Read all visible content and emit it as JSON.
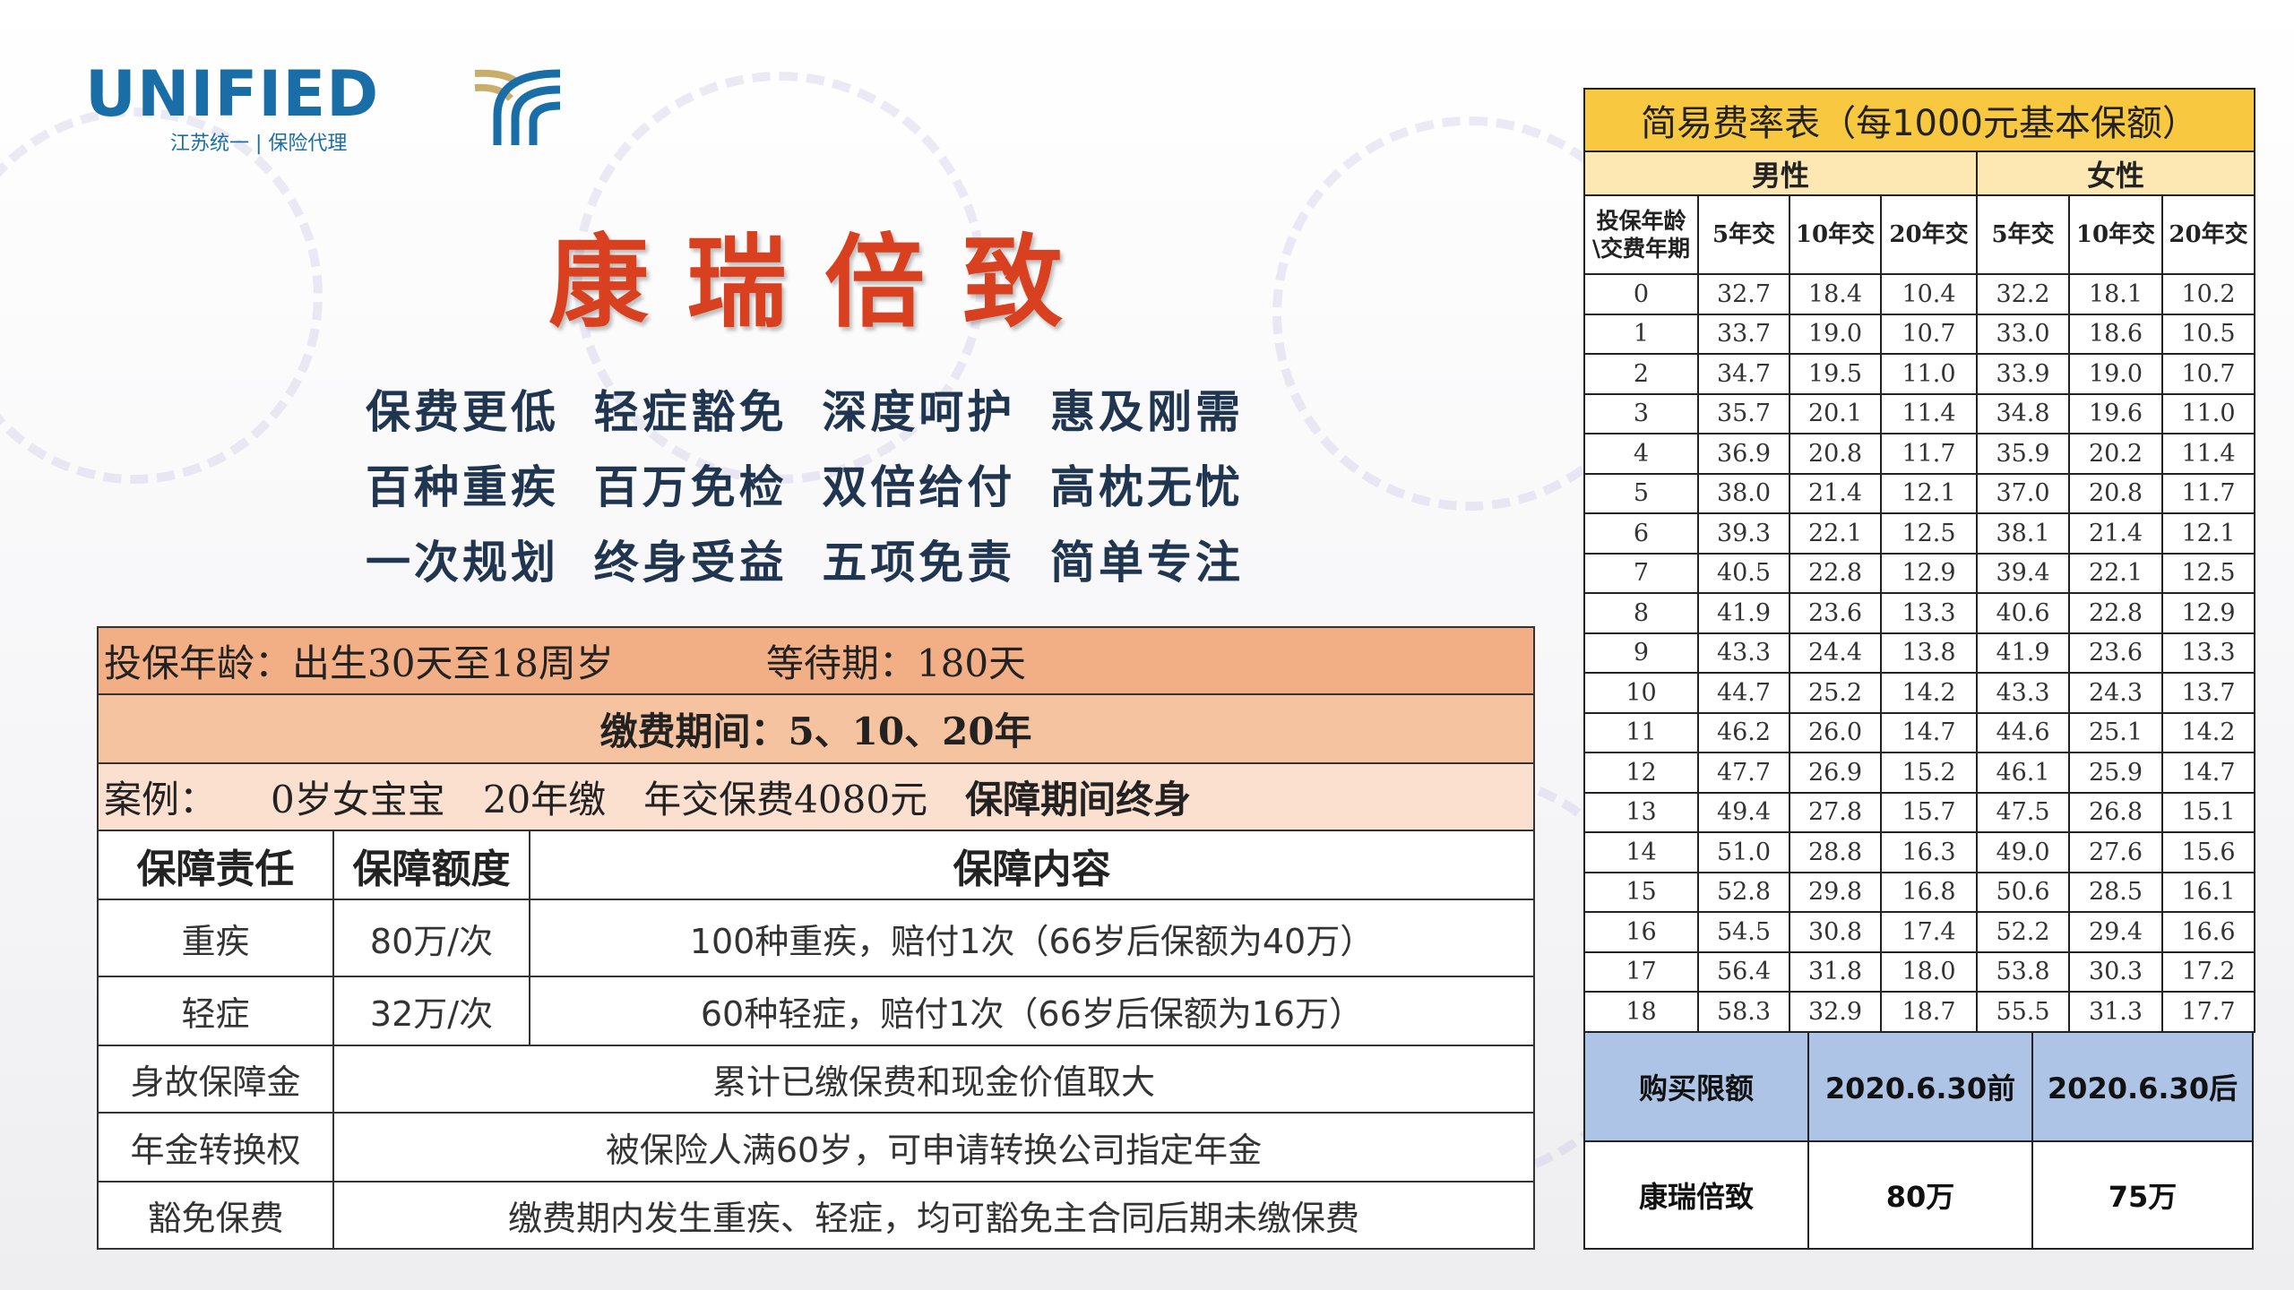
{
  "logo": {
    "name": "UNIFIED",
    "subtitle": "江苏统一 | 保险代理"
  },
  "title": "康瑞倍致",
  "slogans": [
    [
      "保费更低",
      "轻症豁免",
      "深度呵护",
      "惠及刚需"
    ],
    [
      "百种重疾",
      "百万免检",
      "双倍给付",
      "高枕无忧"
    ],
    [
      "一次规划",
      "终身受益",
      "五项免责",
      "简单专注"
    ]
  ],
  "info": {
    "age": "投保年龄：出生30天至18周岁",
    "waiting": "等待期：180天",
    "payment": "缴费期间：5、10、20年",
    "case_label": "案例：",
    "case_detail": "0岁女宝宝　20年缴　年交保费4080元",
    "case_term": "保障期间终身",
    "headers": [
      "保障责任",
      "保障额度",
      "保障内容"
    ],
    "rows": [
      {
        "item": "重疾",
        "amount": "80万/次",
        "content": "100种重疾，赔付1次（66岁后保额为40万）"
      },
      {
        "item": "轻症",
        "amount": "32万/次",
        "content": "60种轻症，赔付1次（66岁后保额为16万）"
      },
      {
        "item": "身故保障金",
        "content": "累计已缴保费和现金价值取大"
      },
      {
        "item": "年金转换权",
        "content": "被保险人满60岁，可申请转换公司指定年金"
      },
      {
        "item": "豁免保费",
        "content": "缴费期内发生重疾、轻症，均可豁免主合同后期未缴保费"
      }
    ]
  },
  "rate_table": {
    "title": "简易费率表（每1000元基本保额）",
    "genders": [
      "男性",
      "女性"
    ],
    "corner": "投保年龄\\交费年期",
    "columns": [
      "5年交",
      "10年交",
      "20年交",
      "5年交",
      "10年交",
      "20年交"
    ],
    "rows": [
      [
        "0",
        "32.7",
        "18.4",
        "10.4",
        "32.2",
        "18.1",
        "10.2"
      ],
      [
        "1",
        "33.7",
        "19.0",
        "10.7",
        "33.0",
        "18.6",
        "10.5"
      ],
      [
        "2",
        "34.7",
        "19.5",
        "11.0",
        "33.9",
        "19.0",
        "10.7"
      ],
      [
        "3",
        "35.7",
        "20.1",
        "11.4",
        "34.8",
        "19.6",
        "11.0"
      ],
      [
        "4",
        "36.9",
        "20.8",
        "11.7",
        "35.9",
        "20.2",
        "11.4"
      ],
      [
        "5",
        "38.0",
        "21.4",
        "12.1",
        "37.0",
        "20.8",
        "11.7"
      ],
      [
        "6",
        "39.3",
        "22.1",
        "12.5",
        "38.1",
        "21.4",
        "12.1"
      ],
      [
        "7",
        "40.5",
        "22.8",
        "12.9",
        "39.4",
        "22.1",
        "12.5"
      ],
      [
        "8",
        "41.9",
        "23.6",
        "13.3",
        "40.6",
        "22.8",
        "12.9"
      ],
      [
        "9",
        "43.3",
        "24.4",
        "13.8",
        "41.9",
        "23.6",
        "13.3"
      ],
      [
        "10",
        "44.7",
        "25.2",
        "14.2",
        "43.3",
        "24.3",
        "13.7"
      ],
      [
        "11",
        "46.2",
        "26.0",
        "14.7",
        "44.6",
        "25.1",
        "14.2"
      ],
      [
        "12",
        "47.7",
        "26.9",
        "15.2",
        "46.1",
        "25.9",
        "14.7"
      ],
      [
        "13",
        "49.4",
        "27.8",
        "15.7",
        "47.5",
        "26.8",
        "15.1"
      ],
      [
        "14",
        "51.0",
        "28.8",
        "16.3",
        "49.0",
        "27.6",
        "15.6"
      ],
      [
        "15",
        "52.8",
        "29.8",
        "16.8",
        "50.6",
        "28.5",
        "16.1"
      ],
      [
        "16",
        "54.5",
        "30.8",
        "17.4",
        "52.2",
        "29.4",
        "16.6"
      ],
      [
        "17",
        "56.4",
        "31.8",
        "18.0",
        "53.8",
        "30.3",
        "17.2"
      ],
      [
        "18",
        "58.3",
        "32.9",
        "18.7",
        "55.5",
        "31.3",
        "17.7"
      ]
    ]
  },
  "purchase_limit": {
    "headers": [
      "购买限额",
      "2020.6.30前",
      "2020.6.30后"
    ],
    "row": [
      "康瑞倍致",
      "80万",
      "75万"
    ]
  },
  "colors": {
    "title": "#d8401f",
    "logo": "#1a6ea8",
    "logo_gold": "#c9ad6a",
    "header_orange": "#f2ae84",
    "rate_title": "#f8c840",
    "limit_header": "#adc4e6"
  }
}
